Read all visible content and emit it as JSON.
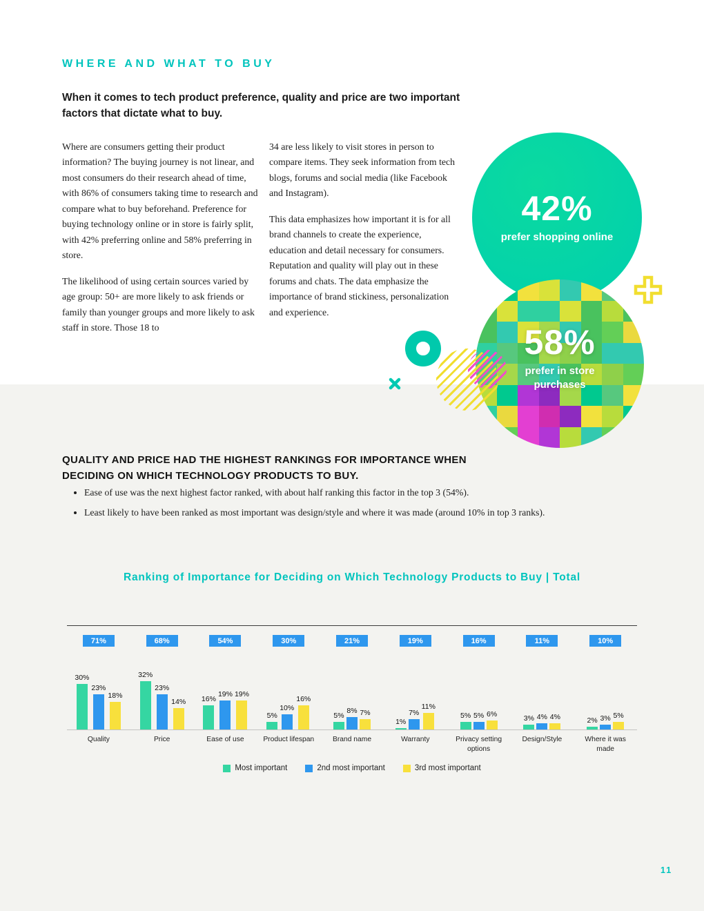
{
  "page": {
    "kicker": "WHERE AND WHAT TO BUY",
    "heading": "When it comes to tech product preference, quality and price are two important factors that dictate what to buy.",
    "page_number": "11"
  },
  "intro": {
    "col1": [
      "Where are consumers getting their product information? The buying journey is not linear, and most consumers do their research ahead of time, with 86% of consumers taking time to research and compare what to buy beforehand. Preference for buying technology online or in store is fairly split, with 42% preferring online and 58% preferring in store.",
      "The likelihood of using certain sources varied by age group: 50+ are more likely to ask friends or family than younger groups and more likely to ask staff in store. Those 18 to"
    ],
    "col2": [
      "34 are less likely to visit stores in person to compare items. They seek information from tech blogs, forums and social media (like Facebook and Instagram).",
      "This data emphasizes how important it is for all brand channels to create the experience, education and detail necessary for consumers. Reputation and quality will play out in these forums and chats. The data emphasize the importance of brand stickiness, personalization and experience."
    ]
  },
  "stats": {
    "online_value": "42%",
    "online_label": "prefer shopping online",
    "in_store_value": "58%",
    "in_store_label": "prefer in store purchases"
  },
  "rankings": {
    "heading": "QUALITY AND PRICE HAD THE HIGHEST RANKINGS FOR IMPORTANCE WHEN DECIDING ON WHICH TECHNOLOGY PRODUCTS TO BUY.",
    "bullets": [
      "Ease of use was the next highest factor ranked, with about half ranking this factor in the top 3 (54%).",
      "Least likely to have been ranked as most important was design/style and where it was made (around 10% in top 3 ranks)."
    ]
  },
  "chart_data": {
    "type": "bar",
    "title": "Ranking of Importance for Deciding on Which Technology Products to Buy | Total",
    "categories": [
      "Quality",
      "Price",
      "Ease of use",
      "Product lifespan",
      "Brand name",
      "Warranty",
      "Privacy setting options",
      "Design/Style",
      "Where it was made"
    ],
    "top3_totals": [
      71,
      68,
      54,
      30,
      21,
      19,
      16,
      11,
      10
    ],
    "series": [
      {
        "name": "Most important",
        "color": "#35d6a2",
        "values": [
          30,
          32,
          16,
          5,
          5,
          1,
          5,
          3,
          2
        ]
      },
      {
        "name": "2nd most important",
        "color": "#2e97ee",
        "values": [
          23,
          23,
          19,
          10,
          8,
          7,
          5,
          4,
          3
        ]
      },
      {
        "name": "3rd most important",
        "color": "#f8e03c",
        "values": [
          18,
          14,
          19,
          16,
          7,
          11,
          6,
          4,
          5
        ]
      }
    ],
    "value_suffix": "%",
    "legend_position": "bottom",
    "grid": false,
    "ylim": [
      0,
      35
    ]
  },
  "colors": {
    "accent_teal": "#00c4bd",
    "badge_blue": "#2e97ee",
    "circle_teal": "#00d2a5",
    "decor_yellow": "#f1de30",
    "decor_pink": "#ee4fc9",
    "section_bg": "#f3f3f0"
  },
  "graphics": {
    "mosaic_palette": [
      "#49c25e",
      "#8fd04a",
      "#2fd0a0",
      "#00c98f",
      "#b8dc3c",
      "#ead93f",
      "#f2e13d",
      "#63cf57",
      "#33c9b0",
      "#a5d84a",
      "#57c87e",
      "#d9e23a"
    ],
    "mosaic_accents": [
      "#b136d6",
      "#8d2bbf",
      "#e33fd2",
      "#d02db0"
    ]
  }
}
